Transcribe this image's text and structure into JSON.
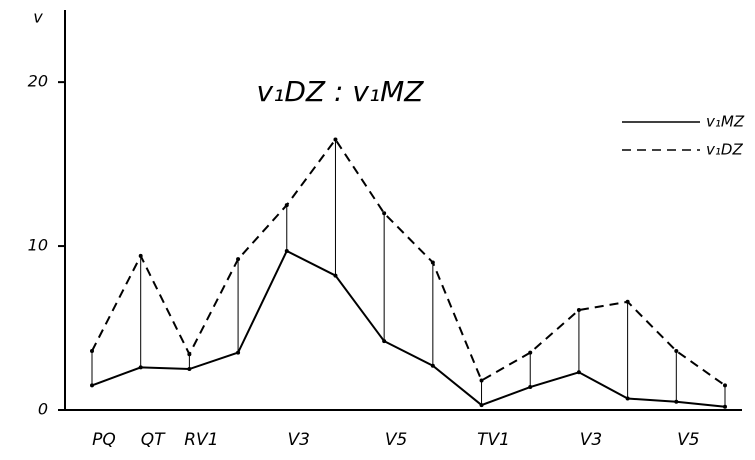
{
  "chart_data": {
    "type": "line",
    "title": "v₁DZ : v₁MZ",
    "y_label": "v",
    "categories": [
      "PQ",
      "QT",
      "RV1",
      null,
      "V3",
      null,
      "V5",
      null,
      "TV1",
      null,
      "V3",
      null,
      "V5",
      null
    ],
    "series": [
      {
        "name": "v₁MZ",
        "color": "#000000",
        "dashed": false,
        "values": [
          1.5,
          2.6,
          2.5,
          3.5,
          9.7,
          8.2,
          4.2,
          2.7,
          0.3,
          1.4,
          2.3,
          0.7,
          0.5,
          0.2
        ]
      },
      {
        "name": "v₁DZ",
        "color": "#000000",
        "dashed": true,
        "values": [
          3.6,
          9.4,
          3.4,
          9.2,
          12.5,
          16.5,
          12.0,
          9.0,
          1.8,
          3.5,
          6.1,
          6.6,
          3.6,
          1.5
        ]
      }
    ],
    "ylim": [
      0,
      24.4
    ],
    "yticks": [
      0,
      10,
      20
    ],
    "legend": "upper right"
  }
}
